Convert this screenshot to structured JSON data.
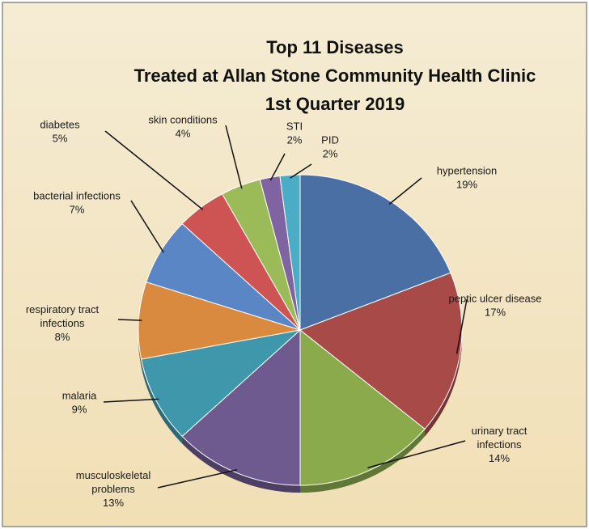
{
  "chart_data": {
    "type": "pie",
    "title": [
      "Top 11 Diseases",
      "Treated at Allan Stone Community Health Clinic",
      "1st Quarter 2019"
    ],
    "slices": [
      {
        "label": [
          "hypertension"
        ],
        "pct_label": "19%",
        "value": 19,
        "color": "#4a6fa5"
      },
      {
        "label": [
          "peptic ulcer disease"
        ],
        "pct_label": "17%",
        "value": 17,
        "color": "#a84a48"
      },
      {
        "label": [
          "urinary tract",
          "infections"
        ],
        "pct_label": "14%",
        "value": 14,
        "color": "#8aaa4c"
      },
      {
        "label": [
          "musculoskeletal",
          "problems"
        ],
        "pct_label": "13%",
        "value": 13,
        "color": "#6e5a8f"
      },
      {
        "label": [
          "malaria"
        ],
        "pct_label": "9%",
        "value": 9,
        "color": "#3f97ab"
      },
      {
        "label": [
          "respiratory tract",
          "infections"
        ],
        "pct_label": "8%",
        "value": 8,
        "color": "#d98a3f"
      },
      {
        "label": [
          "bacterial infections"
        ],
        "pct_label": "7%",
        "value": 7,
        "color": "#5b86c6"
      },
      {
        "label": [
          "diabetes"
        ],
        "pct_label": "5%",
        "value": 5,
        "color": "#cd5452"
      },
      {
        "label": [
          "skin conditions"
        ],
        "pct_label": "4%",
        "value": 4,
        "color": "#9bbb59"
      },
      {
        "label": [
          "STI"
        ],
        "pct_label": "2%",
        "value": 2,
        "color": "#8064a2"
      },
      {
        "label": [
          "PID"
        ],
        "pct_label": "2%",
        "value": 2,
        "color": "#4bacc6"
      }
    ],
    "legend": "none",
    "start_angle": "12 o'clock",
    "direction": "clockwise"
  }
}
